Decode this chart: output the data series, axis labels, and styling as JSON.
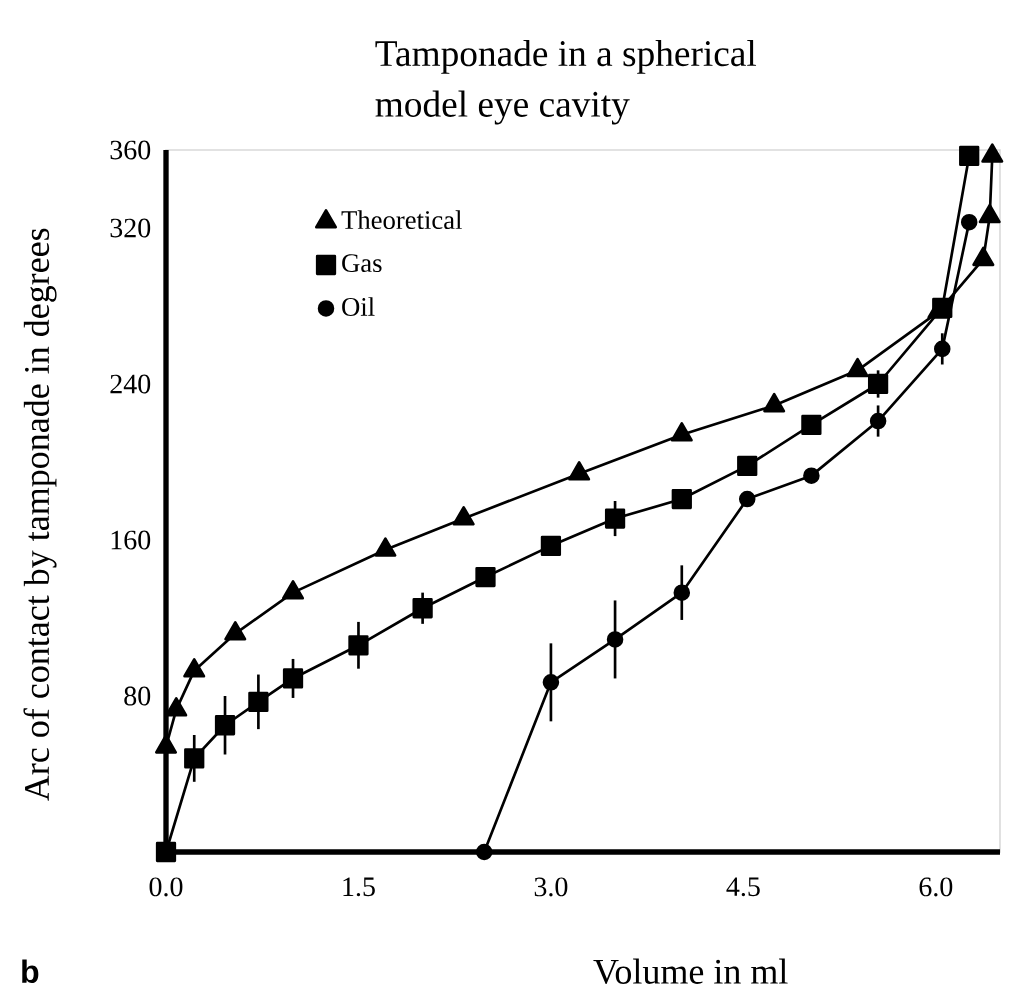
{
  "chart_data": {
    "type": "line",
    "title": "Tamponade in a spherical model eye cavity",
    "xlabel": "Volume in ml",
    "ylabel": "Arc of contact by tamponade in degrees",
    "annotations": [
      "b"
    ],
    "xlim": [
      0,
      6.5
    ],
    "ylim": [
      0,
      360
    ],
    "xticks": [
      {
        "value": 0,
        "label": "0.0"
      },
      {
        "value": 1.5,
        "label": "1.5"
      },
      {
        "value": 3,
        "label": "3.0"
      },
      {
        "value": 4.5,
        "label": "4.5"
      },
      {
        "value": 6,
        "label": "6.0"
      }
    ],
    "yticks": [
      80,
      160,
      240,
      320,
      360
    ],
    "legend": "top left",
    "series": [
      {
        "name": "Theoretical",
        "color": "#000000",
        "marker": "triangle",
        "x": [
          0,
          0.08,
          0.22,
          0.54,
          0.99,
          1.71,
          2.32,
          3.22,
          4.02,
          4.74,
          5.39,
          6.02,
          6.37,
          6.42,
          6.44
        ],
        "values": [
          54,
          73,
          93,
          112,
          133,
          155,
          171,
          194,
          214,
          229,
          247,
          277,
          304,
          326,
          357
        ]
      },
      {
        "name": "Gas",
        "color": "#000000",
        "marker": "square",
        "x": [
          0,
          0.22,
          0.46,
          0.72,
          0.99,
          1.5,
          2.0,
          2.49,
          3.0,
          3.5,
          4.02,
          4.53,
          5.03,
          5.55,
          6.05,
          6.26
        ],
        "values": [
          0,
          48,
          65,
          77,
          89,
          106,
          125,
          141,
          157,
          171,
          181,
          198,
          219,
          240,
          279,
          357
        ],
        "errors": [
          null,
          12,
          15,
          14,
          10,
          12,
          8,
          null,
          null,
          9,
          null,
          null,
          null,
          7,
          null,
          null
        ]
      },
      {
        "name": "Oil",
        "color": "#000000",
        "marker": "circle",
        "x": [
          2.48,
          3.0,
          3.5,
          4.02,
          4.53,
          5.03,
          5.55,
          6.05,
          6.26
        ],
        "values": [
          0,
          87,
          109,
          133,
          181,
          193,
          221,
          258,
          323
        ],
        "errors": [
          null,
          20,
          20,
          14,
          null,
          null,
          8,
          8,
          null
        ]
      }
    ]
  }
}
